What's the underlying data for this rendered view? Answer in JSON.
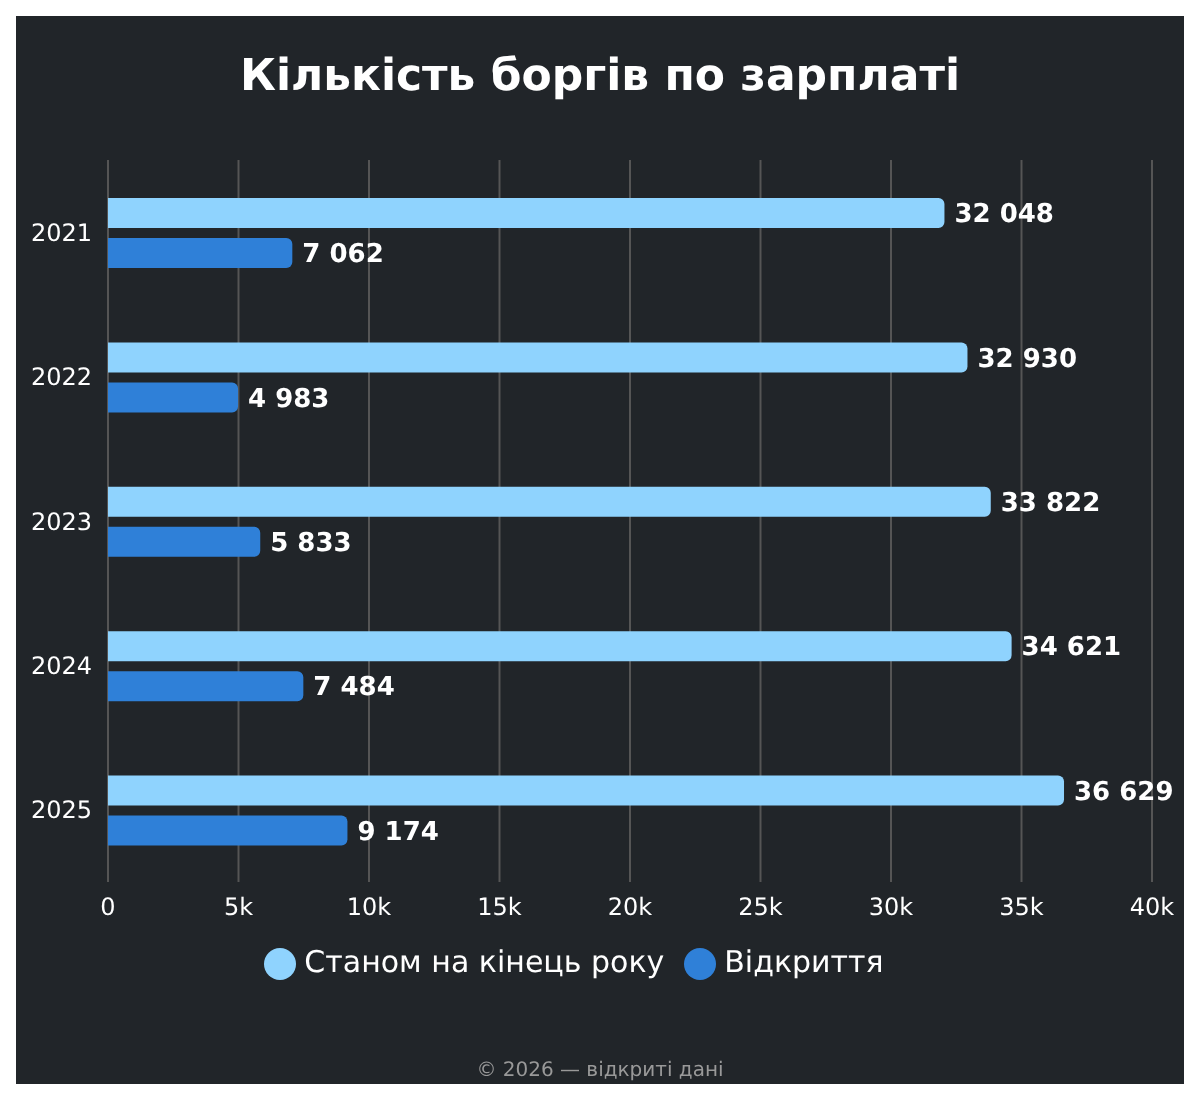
{
  "chart_data": {
    "type": "bar",
    "orientation": "horizontal",
    "title": "Кількість боргів по зарплаті",
    "categories": [
      "2021",
      "2022",
      "2023",
      "2024",
      "2025"
    ],
    "series": [
      {
        "name": "Станом на кінець року",
        "color": "#8fd3fe",
        "values": [
          32048,
          32930,
          33822,
          34621,
          36629
        ],
        "value_labels": [
          "32 048",
          "32 930",
          "33 822",
          "34 621",
          "36 629"
        ]
      },
      {
        "name": "Відкриття",
        "color": "#2f80d8",
        "values": [
          7062,
          4983,
          5833,
          7484,
          9174
        ],
        "value_labels": [
          "7 062",
          "4 983",
          "5 833",
          "7 484",
          "9 174"
        ]
      }
    ],
    "xlim": [
      0,
      40000
    ],
    "xticks": [
      0,
      {
        "value": 5000,
        "label": "5k"
      },
      {
        "value": 10000,
        "label": "10k"
      },
      {
        "value": 15000,
        "label": "15k"
      },
      {
        "value": 20000,
        "label": "20k"
      },
      {
        "value": 25000,
        "label": "25k"
      },
      {
        "value": 30000,
        "label": "30k"
      },
      {
        "value": 35000,
        "label": "35k"
      },
      {
        "value": 40000,
        "label": "40k"
      }
    ],
    "grid": "x",
    "legend": "bottom",
    "annotations": [
      "© 2026 — відкриті дані"
    ]
  }
}
